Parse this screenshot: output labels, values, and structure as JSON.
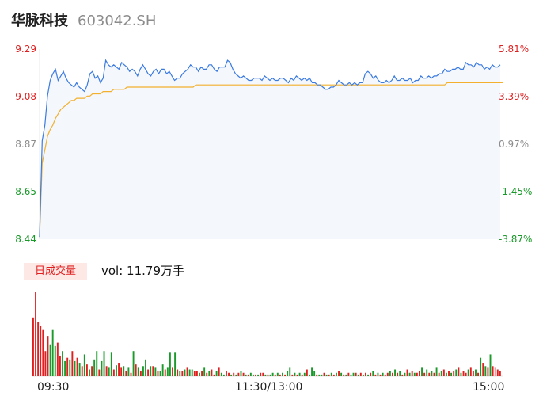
{
  "stock": {
    "name": "华脉科技",
    "code": "603042.SH"
  },
  "volume_panel": {
    "badge": "日成交量",
    "label": "vol: 11.79万手"
  },
  "colors": {
    "price_line": "#3b7be0",
    "avg_line": "#f2b02c",
    "area_fill": "#f4f7fc",
    "up": "#e02020",
    "down": "#1a9a2a",
    "flat": "#8c8c8c"
  },
  "chart_data": {
    "type": "line",
    "price_axis": {
      "ticks": [
        "9.29",
        "9.08",
        "8.87",
        "8.65",
        "8.44"
      ],
      "ylim": [
        8.44,
        9.29
      ]
    },
    "pct_axis": {
      "ticks": [
        "5.81%",
        "3.39%",
        "0.97%",
        "-1.45%",
        "-3.87%"
      ]
    },
    "x_ticks": [
      "09:30",
      "11:30/13:00",
      "15:00"
    ],
    "price_series": {
      "name": "",
      "values": [
        8.45,
        8.88,
        8.95,
        9.08,
        9.15,
        9.18,
        9.2,
        9.15,
        9.17,
        9.19,
        9.16,
        9.14,
        9.13,
        9.12,
        9.14,
        9.12,
        9.11,
        9.1,
        9.13,
        9.18,
        9.19,
        9.16,
        9.17,
        9.14,
        9.16,
        9.24,
        9.22,
        9.21,
        9.22,
        9.21,
        9.2,
        9.23,
        9.22,
        9.21,
        9.19,
        9.2,
        9.19,
        9.17,
        9.2,
        9.22,
        9.2,
        9.18,
        9.17,
        9.19,
        9.2,
        9.18,
        9.2,
        9.2,
        9.18,
        9.19,
        9.17,
        9.15,
        9.16,
        9.16,
        9.18,
        9.19,
        9.2,
        9.22,
        9.21,
        9.21,
        9.19,
        9.21,
        9.2,
        9.2,
        9.22,
        9.22,
        9.2,
        9.19,
        9.21,
        9.21,
        9.21,
        9.24,
        9.23,
        9.2,
        9.18,
        9.17,
        9.16,
        9.17,
        9.16,
        9.15,
        9.15,
        9.16,
        9.16,
        9.16,
        9.15,
        9.17,
        9.16,
        9.15,
        9.16,
        9.15,
        9.15,
        9.16,
        9.16,
        9.15,
        9.14,
        9.16,
        9.15,
        9.17,
        9.16,
        9.15,
        9.16,
        9.15,
        9.16,
        9.14,
        9.14,
        9.13,
        9.13,
        9.12,
        9.11,
        9.11,
        9.12,
        9.12,
        9.13,
        9.15,
        9.14,
        9.13,
        9.13,
        9.14,
        9.13,
        9.14,
        9.13,
        9.14,
        9.14,
        9.18,
        9.19,
        9.18,
        9.16,
        9.17,
        9.15,
        9.14,
        9.14,
        9.15,
        9.14,
        9.15,
        9.17,
        9.15,
        9.15,
        9.16,
        9.15,
        9.15,
        9.16,
        9.14,
        9.15,
        9.15,
        9.17,
        9.16,
        9.16,
        9.17,
        9.16,
        9.17,
        9.17,
        9.18,
        9.18,
        9.2,
        9.19,
        9.19,
        9.2,
        9.2,
        9.21,
        9.2,
        9.2,
        9.23,
        9.22,
        9.22,
        9.21,
        9.23,
        9.22,
        9.22,
        9.2,
        9.21,
        9.2,
        9.22,
        9.21,
        9.21,
        9.22
      ]
    },
    "avg_series": {
      "name": "",
      "values": [
        8.45,
        8.78,
        8.84,
        8.9,
        8.93,
        8.95,
        8.98,
        9.0,
        9.02,
        9.03,
        9.04,
        9.05,
        9.06,
        9.06,
        9.07,
        9.07,
        9.07,
        9.07,
        9.08,
        9.08,
        9.09,
        9.09,
        9.09,
        9.09,
        9.1,
        9.1,
        9.1,
        9.1,
        9.11,
        9.11,
        9.11,
        9.11,
        9.11,
        9.12,
        9.12,
        9.12,
        9.12,
        9.12,
        9.12,
        9.12,
        9.12,
        9.12,
        9.12,
        9.12,
        9.12,
        9.12,
        9.12,
        9.12,
        9.12,
        9.12,
        9.12,
        9.12,
        9.12,
        9.12,
        9.12,
        9.12,
        9.12,
        9.12,
        9.12,
        9.13,
        9.13,
        9.13,
        9.13,
        9.13,
        9.13,
        9.13,
        9.13,
        9.13,
        9.13,
        9.13,
        9.13,
        9.13,
        9.13,
        9.13,
        9.13,
        9.13,
        9.13,
        9.13,
        9.13,
        9.13,
        9.13,
        9.13,
        9.13,
        9.13,
        9.13,
        9.13,
        9.13,
        9.13,
        9.13,
        9.13,
        9.13,
        9.13,
        9.13,
        9.13,
        9.13,
        9.13,
        9.13,
        9.13,
        9.13,
        9.13,
        9.13,
        9.13,
        9.13,
        9.13,
        9.13,
        9.13,
        9.13,
        9.13,
        9.13,
        9.13,
        9.13,
        9.13,
        9.13,
        9.13,
        9.13,
        9.13,
        9.13,
        9.13,
        9.13,
        9.13,
        9.13,
        9.13,
        9.13,
        9.13,
        9.13,
        9.13,
        9.13,
        9.13,
        9.13,
        9.13,
        9.13,
        9.13,
        9.13,
        9.13,
        9.13,
        9.13,
        9.13,
        9.13,
        9.13,
        9.13,
        9.13,
        9.13,
        9.13,
        9.13,
        9.13,
        9.13,
        9.13,
        9.13,
        9.13,
        9.13,
        9.13,
        9.13,
        9.13,
        9.13,
        9.14,
        9.14,
        9.14,
        9.14,
        9.14,
        9.14,
        9.14,
        9.14,
        9.14,
        9.14,
        9.14,
        9.14,
        9.14,
        9.14,
        9.14,
        9.14,
        9.14,
        9.14,
        9.14,
        9.14,
        9.14,
        9.14
      ]
    },
    "volume_bars": {
      "name": "",
      "values": [
        70,
        100,
        65,
        60,
        55,
        30,
        48,
        38,
        55,
        36,
        40,
        24,
        30,
        18,
        22,
        20,
        30,
        18,
        22,
        16,
        12,
        26,
        14,
        8,
        12,
        20,
        30,
        8,
        18,
        30,
        12,
        10,
        28,
        8,
        13,
        16,
        10,
        12,
        6,
        10,
        4,
        30,
        14,
        10,
        6,
        12,
        20,
        8,
        12,
        12,
        10,
        6,
        6,
        14,
        8,
        10,
        28,
        10,
        28,
        8,
        6,
        6,
        8,
        10,
        8,
        8,
        6,
        6,
        4,
        6,
        10,
        4,
        6,
        8,
        2,
        6,
        10,
        4,
        2,
        6,
        4,
        2,
        4,
        2,
        4,
        6,
        4,
        2,
        2,
        4,
        2,
        2,
        2,
        4,
        4,
        2,
        2,
        2,
        4,
        2,
        4,
        2,
        4,
        2,
        6,
        10,
        2,
        4,
        2,
        4,
        2,
        4,
        8,
        2,
        10,
        6,
        2,
        2,
        2,
        4,
        2,
        2,
        4,
        2,
        4,
        6,
        4,
        2,
        2,
        4,
        2,
        4,
        4,
        2,
        4,
        2,
        4,
        2,
        4,
        6,
        2,
        4,
        2,
        4,
        2,
        4,
        6,
        4,
        8,
        4,
        6,
        2,
        4,
        8,
        4,
        6,
        4,
        4,
        6,
        10,
        4,
        8,
        4,
        6,
        4,
        10,
        4,
        6,
        8,
        4,
        6,
        4,
        6,
        8,
        10,
        4,
        6,
        4,
        8,
        10,
        6,
        8,
        4,
        22,
        16,
        12,
        10,
        26,
        12,
        10,
        8,
        6
      ],
      "colors": [
        "up",
        "up",
        "up",
        "up",
        "up",
        "up",
        "up",
        "down",
        "down",
        "down",
        "up",
        "up",
        "down",
        "down",
        "up",
        "down",
        "up",
        "down",
        "up",
        "down",
        "up",
        "down",
        "up",
        "down",
        "up",
        "down",
        "down",
        "up",
        "down",
        "down",
        "up",
        "down",
        "down",
        "up",
        "down",
        "up",
        "up",
        "down",
        "up",
        "down",
        "up",
        "down",
        "up",
        "down",
        "up",
        "down",
        "down",
        "up",
        "down",
        "up",
        "down",
        "up",
        "down",
        "down",
        "up",
        "down",
        "down",
        "up",
        "down",
        "up",
        "down",
        "up",
        "down",
        "up",
        "down",
        "down",
        "up",
        "up",
        "down",
        "up",
        "down",
        "up",
        "down",
        "up",
        "up",
        "down",
        "up",
        "down",
        "down",
        "up",
        "up",
        "down",
        "up",
        "down",
        "up",
        "down",
        "up",
        "down",
        "up",
        "down",
        "down",
        "up",
        "down",
        "up",
        "up",
        "down",
        "up",
        "down",
        "down",
        "up",
        "down",
        "up",
        "down",
        "up",
        "down",
        "down",
        "up",
        "down",
        "up",
        "down",
        "up",
        "down",
        "up",
        "down",
        "down",
        "down",
        "up",
        "down",
        "down",
        "up",
        "down",
        "up",
        "down",
        "up",
        "down",
        "up",
        "down",
        "up",
        "down",
        "up",
        "down",
        "down",
        "up",
        "down",
        "up",
        "down",
        "up",
        "down",
        "up",
        "down",
        "up",
        "down",
        "up",
        "down",
        "up",
        "up",
        "down",
        "up",
        "down",
        "up",
        "down",
        "up",
        "down",
        "up",
        "down",
        "up",
        "down",
        "up",
        "up",
        "down",
        "up",
        "down",
        "up",
        "down",
        "up",
        "down",
        "up",
        "down",
        "up",
        "down",
        "up",
        "down",
        "up",
        "down",
        "up",
        "down",
        "up",
        "up",
        "down",
        "up",
        "up",
        "down",
        "up",
        "down",
        "up",
        "down",
        "up",
        "down",
        "up",
        "flat",
        "up"
      ]
    }
  }
}
